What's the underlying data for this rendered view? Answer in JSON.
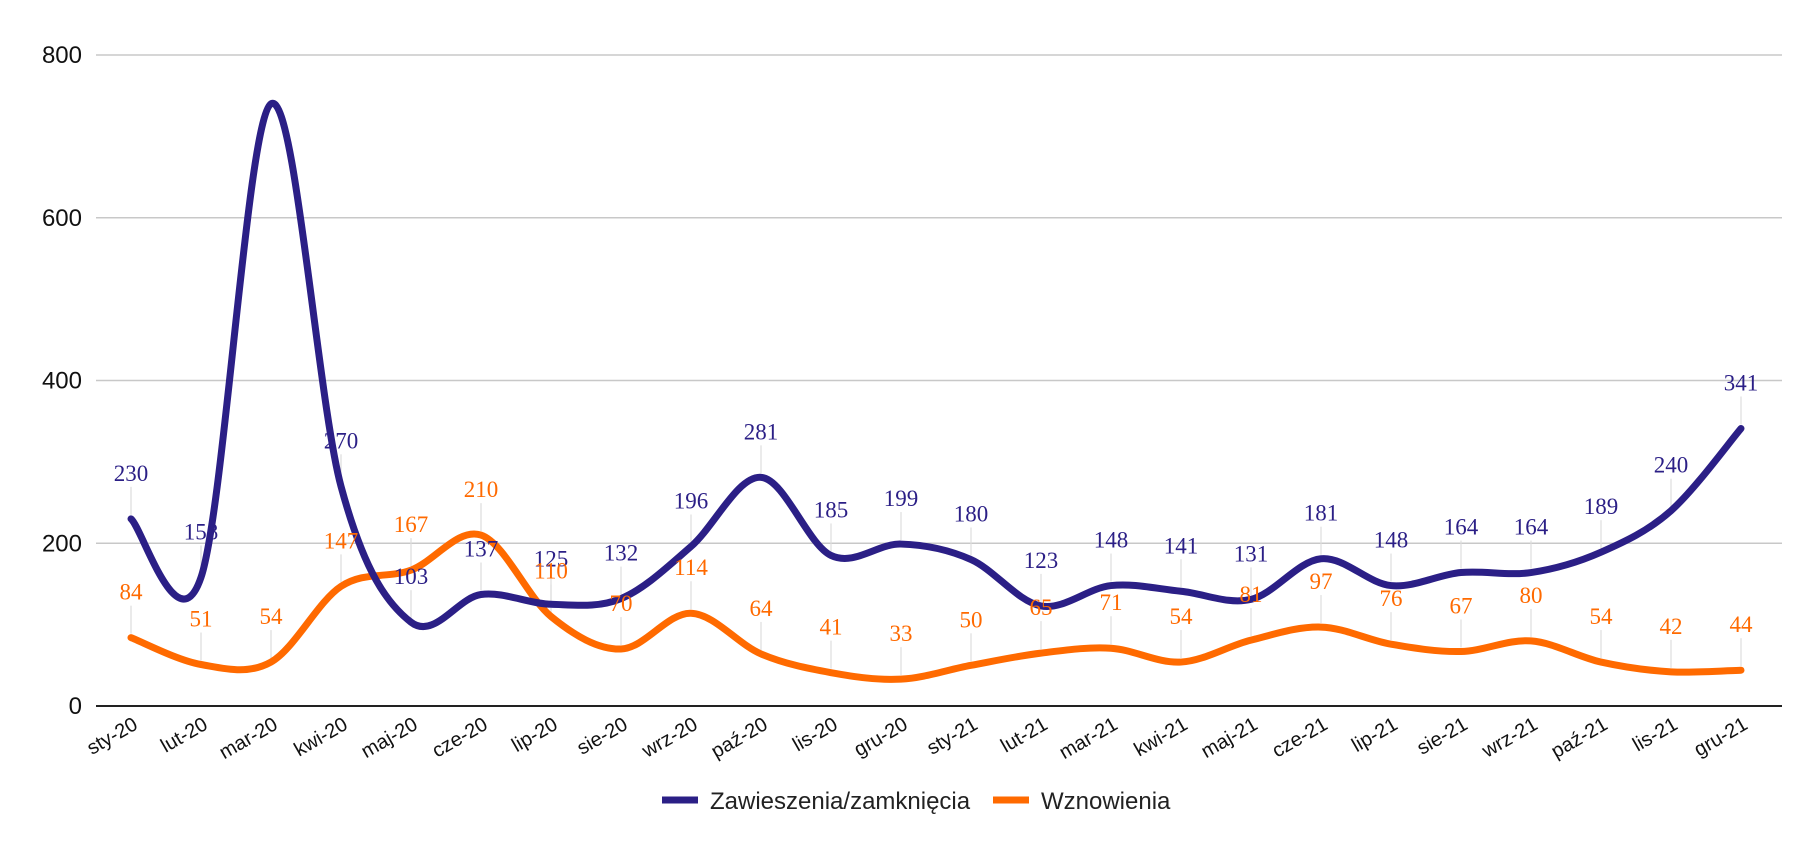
{
  "chart_data": {
    "type": "line",
    "title": "",
    "xlabel": "",
    "ylabel": "",
    "ylim": [
      0,
      800
    ],
    "yticks": [
      0,
      200,
      400,
      600,
      800
    ],
    "grid": true,
    "legend_position": "bottom",
    "categories": [
      "sty-20",
      "lut-20",
      "mar-20",
      "kwi-20",
      "maj-20",
      "cze-20",
      "lip-20",
      "sie-20",
      "wrz-20",
      "paź-20",
      "lis-20",
      "gru-20",
      "sty-21",
      "lut-21",
      "mar-21",
      "kwi-21",
      "maj-21",
      "cze-21",
      "lip-21",
      "sie-21",
      "wrz-21",
      "paź-21",
      "lis-21",
      "gru-21"
    ],
    "series": [
      {
        "name": "Zawieszenia/zamknięcia",
        "color": "#2b1f86",
        "values": [
          230,
          158,
          740,
          270,
          103,
          137,
          125,
          132,
          196,
          281,
          185,
          199,
          180,
          123,
          148,
          141,
          131,
          181,
          148,
          164,
          164,
          189,
          240,
          341
        ],
        "labels": [
          "230",
          "158",
          "",
          "270",
          "103",
          "137",
          "125",
          "132",
          "196",
          "281",
          "185",
          "199",
          "180",
          "123",
          "148",
          "141",
          "131",
          "181",
          "148",
          "164",
          "164",
          "189",
          "240",
          "341"
        ]
      },
      {
        "name": "Wznowienia",
        "color": "#ff6a00",
        "values": [
          84,
          51,
          54,
          147,
          167,
          210,
          110,
          70,
          114,
          64,
          41,
          33,
          50,
          65,
          71,
          54,
          81,
          97,
          76,
          67,
          80,
          54,
          42,
          44
        ],
        "labels": [
          "84",
          "51",
          "54",
          "147",
          "167",
          "210",
          "110",
          "70",
          "114",
          "64",
          "41",
          "33",
          "50",
          "65",
          "71",
          "54",
          "81",
          "97",
          "76",
          "67",
          "80",
          "54",
          "42",
          "44"
        ]
      }
    ]
  }
}
